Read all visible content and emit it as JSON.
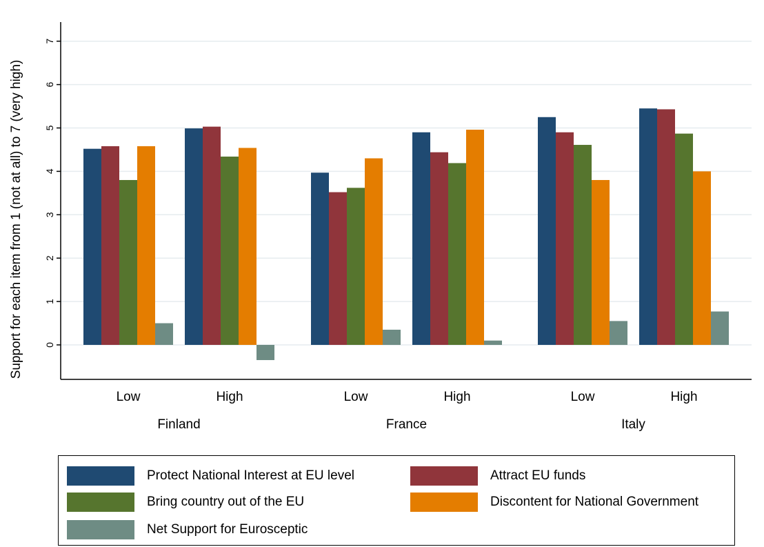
{
  "chart_data": {
    "type": "bar",
    "ylabel": "Support for each item from 1 (not at all) to 7 (very high)",
    "xlabel": "",
    "ylim": [
      -0.8,
      7.4
    ],
    "yticks": [
      0,
      1,
      2,
      3,
      4,
      5,
      6,
      7
    ],
    "grid": true,
    "legend_position": "bottom",
    "groups": [
      {
        "name": "Finland",
        "categories": [
          "Low",
          "High"
        ]
      },
      {
        "name": "France",
        "categories": [
          "Low",
          "High"
        ]
      },
      {
        "name": "Italy",
        "categories": [
          "Low",
          "High"
        ]
      }
    ],
    "categories": [
      "Finland Low",
      "Finland High",
      "France Low",
      "France High",
      "Italy Low",
      "Italy High"
    ],
    "series": [
      {
        "name": "Protect National Interest at EU level",
        "color": "#1f4a72",
        "values": [
          4.52,
          4.99,
          3.97,
          4.9,
          5.25,
          5.45
        ]
      },
      {
        "name": "Attract EU funds",
        "color": "#90353b",
        "values": [
          4.58,
          5.03,
          3.52,
          4.44,
          4.9,
          5.43
        ]
      },
      {
        "name": "Bring country out of the EU",
        "color": "#56752e",
        "values": [
          3.8,
          4.34,
          3.62,
          4.19,
          4.61,
          4.87
        ]
      },
      {
        "name": "Discontent for National Government",
        "color": "#e47d00",
        "values": [
          4.58,
          4.54,
          4.3,
          4.96,
          3.8,
          4.0
        ]
      },
      {
        "name": "Net Support for Eurosceptic",
        "color": "#6e8c84",
        "values": [
          0.5,
          -0.35,
          0.35,
          0.1,
          0.55,
          0.77
        ]
      }
    ]
  }
}
